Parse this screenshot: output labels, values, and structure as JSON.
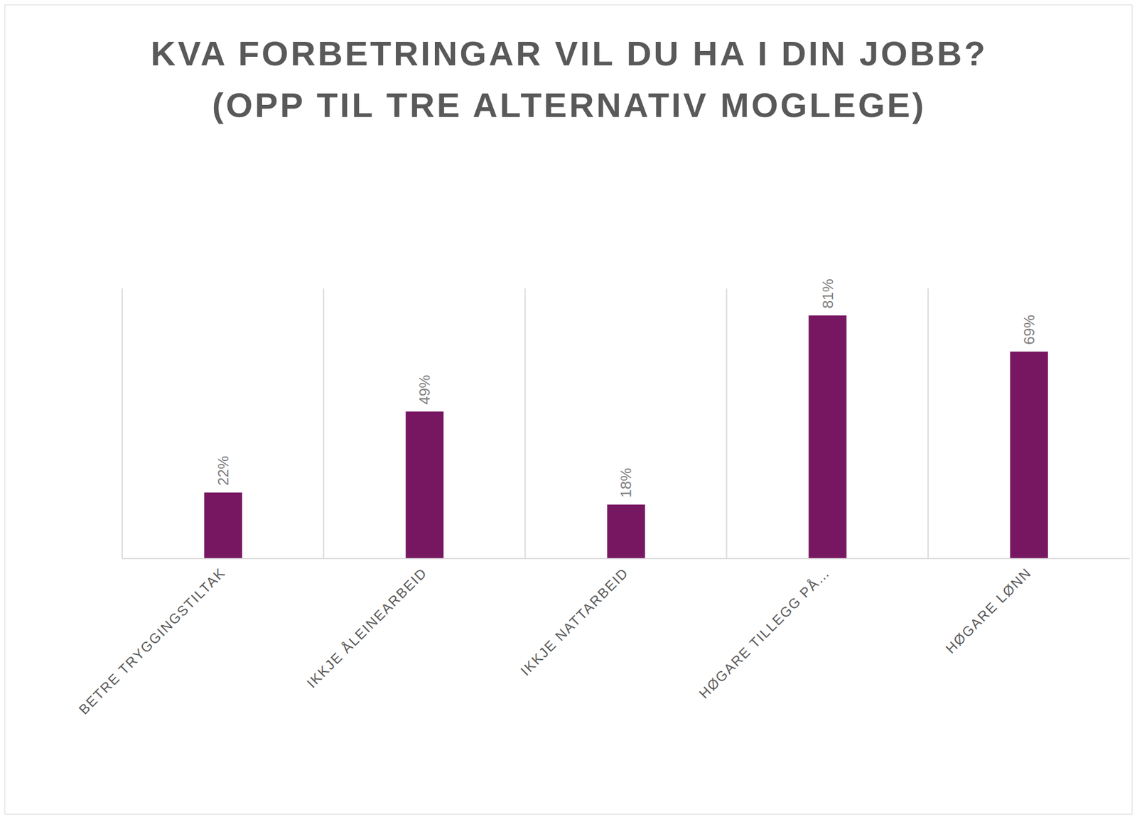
{
  "chart_data": {
    "type": "bar",
    "title": "KVA FORBETRINGAR VIL DU HA I DIN JOBB? (OPP TIL TRE ALTERNATIV MOGLEGE)",
    "categories": [
      "BETRE TRYGGINGSTILTAK",
      "IKKJE ÅLEINEARBEID",
      "IKKJE NATTARBEID",
      "HØGARE TILLEGG PÅ…",
      "HØGARE LØNN"
    ],
    "values": [
      22,
      49,
      18,
      81,
      69
    ],
    "value_labels": [
      "22%",
      "49%",
      "18%",
      "81%",
      "69%"
    ],
    "color": "#771661",
    "ylim": [
      0,
      90
    ],
    "grid": true,
    "data_labels": true,
    "tick_labels": "x"
  }
}
